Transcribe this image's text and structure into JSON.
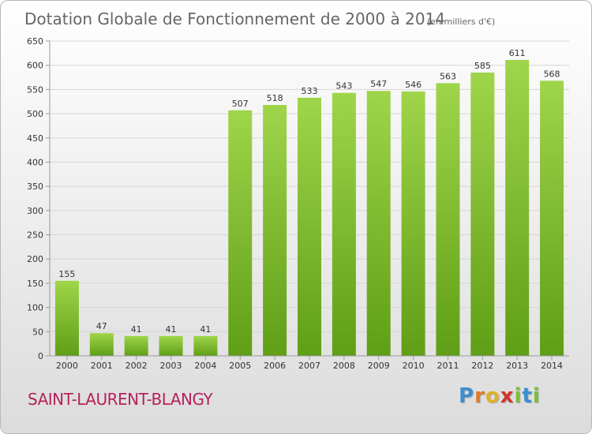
{
  "chart_data": {
    "type": "bar",
    "title": "Dotation Globale de Fonctionnement de 2000 à 2014",
    "unit": "(en milliers d'€)",
    "categories": [
      "2000",
      "2001",
      "2002",
      "2003",
      "2004",
      "2005",
      "2006",
      "2007",
      "2008",
      "2009",
      "2010",
      "2011",
      "2012",
      "2013",
      "2014"
    ],
    "values": [
      155,
      47,
      41,
      41,
      41,
      507,
      518,
      533,
      543,
      547,
      546,
      563,
      585,
      611,
      568
    ],
    "yticks": [
      0,
      50,
      100,
      150,
      200,
      250,
      300,
      350,
      400,
      450,
      500,
      550,
      600,
      650
    ],
    "ylim": [
      0,
      650
    ],
    "grid": true,
    "xlabel": "",
    "ylabel": ""
  },
  "commune": "SAINT-LAURENT-BLANGY",
  "logo": {
    "letters": [
      "P",
      "r",
      "o",
      "x",
      "i",
      "t",
      "i"
    ],
    "colors": [
      "#3a8fd0",
      "#e07a2a",
      "#e0b12a",
      "#d0362a",
      "#7bbf3a",
      "#3a8fd0",
      "#7bbf3a"
    ]
  },
  "colors": {
    "bar_light": "#9fd54a",
    "bar_dark": "#5f9e16",
    "grid": "#d6d6d6",
    "axis": "#999999"
  }
}
